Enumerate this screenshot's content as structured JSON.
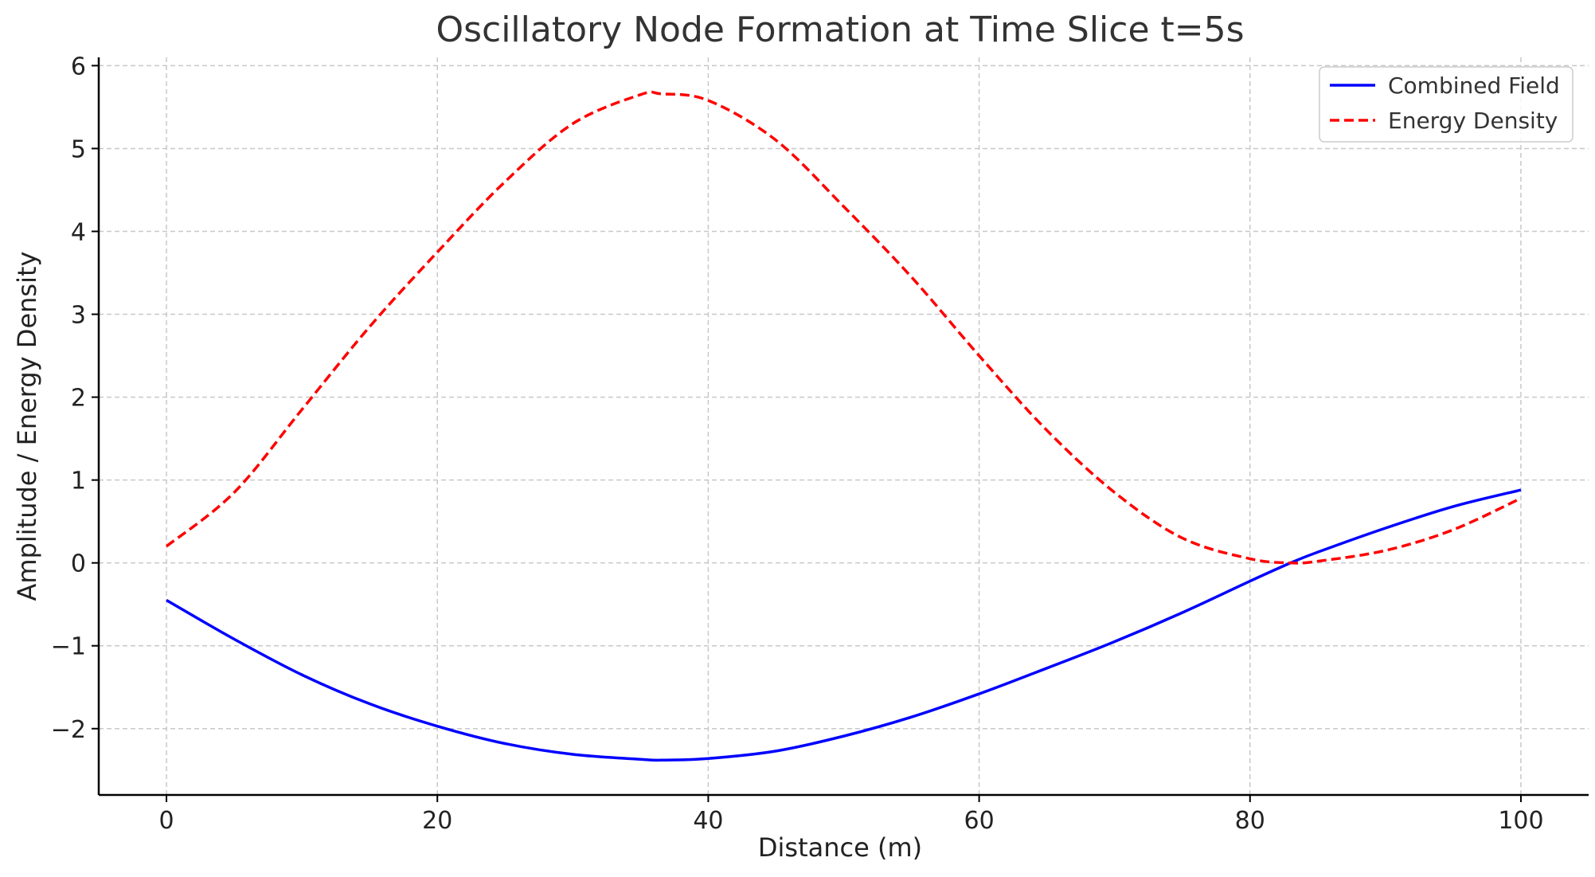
{
  "chart_data": {
    "type": "line",
    "title": "Oscillatory Node Formation at Time Slice t=5s",
    "xlabel": "Distance (m)",
    "ylabel": "Amplitude / Energy Density",
    "xlim": [
      -5,
      105
    ],
    "ylim": [
      -2.8,
      6.1
    ],
    "x_ticks": [
      0,
      20,
      40,
      60,
      80,
      100
    ],
    "x_tick_labels": [
      "0",
      "20",
      "40",
      "60",
      "80",
      "100"
    ],
    "y_ticks": [
      -2,
      -1,
      0,
      1,
      2,
      3,
      4,
      5,
      6
    ],
    "y_tick_labels": [
      "−2",
      "−1",
      "0",
      "1",
      "2",
      "3",
      "4",
      "5",
      "6"
    ],
    "grid": true,
    "legend": {
      "position": "top-right"
    },
    "x": [
      0,
      5,
      10,
      15,
      20,
      25,
      30,
      35,
      36.5,
      40,
      45,
      50,
      55,
      60,
      65,
      70,
      75,
      80,
      83,
      85,
      90,
      95,
      100
    ],
    "series": [
      {
        "name": "Combined Field",
        "color": "#0000ff",
        "style": "solid",
        "values": [
          -0.45,
          -0.92,
          -1.35,
          -1.7,
          -1.97,
          -2.18,
          -2.31,
          -2.37,
          -2.38,
          -2.36,
          -2.27,
          -2.09,
          -1.86,
          -1.58,
          -1.27,
          -0.95,
          -0.6,
          -0.22,
          0.0,
          0.13,
          0.42,
          0.68,
          0.88
        ]
      },
      {
        "name": "Energy Density",
        "color": "#ff0000",
        "style": "dashed",
        "values": [
          0.2,
          0.85,
          1.85,
          2.85,
          3.75,
          4.6,
          5.3,
          5.65,
          5.66,
          5.58,
          5.1,
          4.3,
          3.45,
          2.5,
          1.6,
          0.85,
          0.3,
          0.05,
          0.0,
          0.02,
          0.15,
          0.4,
          0.78
        ]
      }
    ]
  }
}
